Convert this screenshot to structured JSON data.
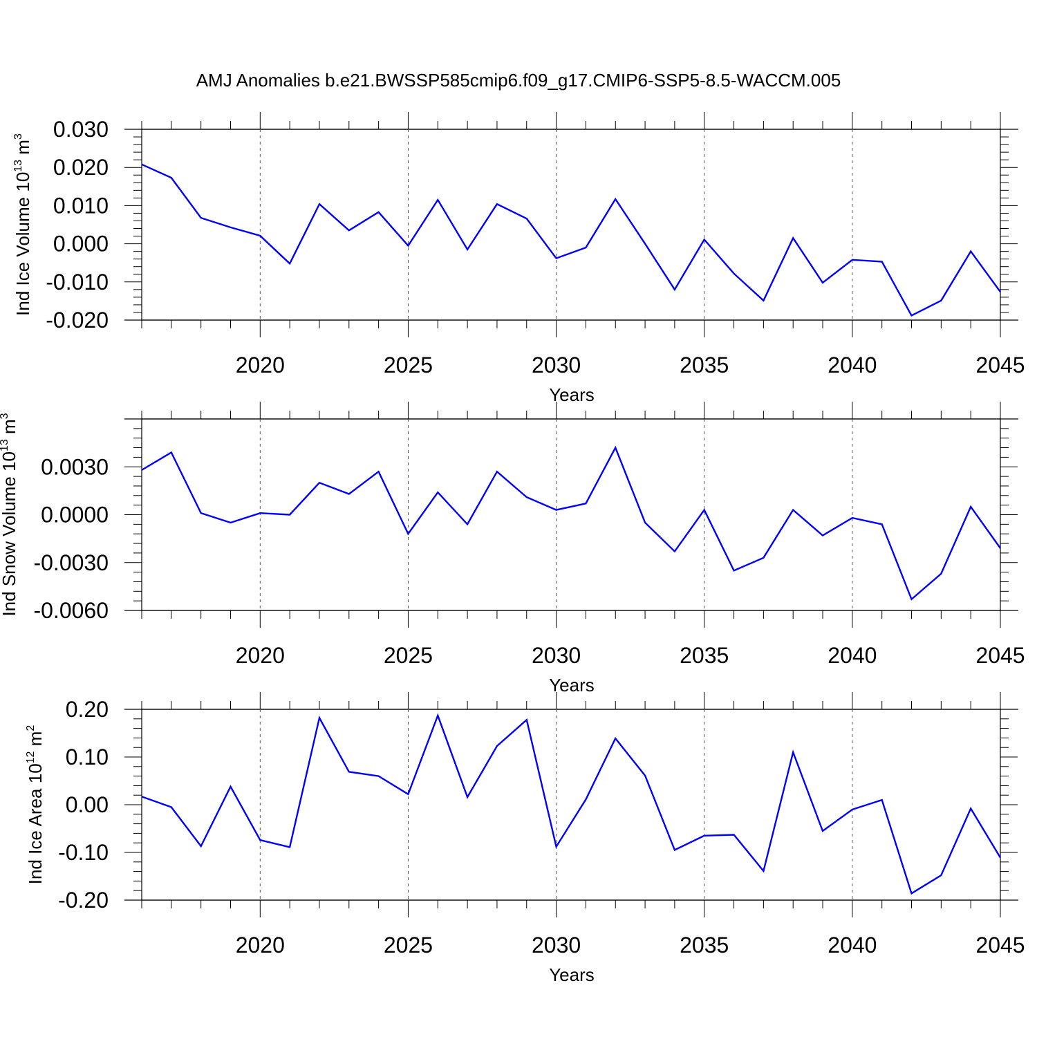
{
  "title": "AMJ Anomalies b.e21.BWSSP585cmip6.f09_g17.CMIP6-SSP5-8.5-WACCM.005",
  "colors": {
    "series": "#0000ff",
    "axis": "#000000",
    "grid": "#555555"
  },
  "chart_data": [
    {
      "type": "line",
      "ylabel": {
        "base": "Ind Ice Volume 10",
        "exp": "13",
        "unit": " m",
        "unit_exp": "3"
      },
      "xlabel": "Years",
      "xlim": [
        2016,
        2045
      ],
      "ylim": [
        -0.02,
        0.03
      ],
      "yticks": [
        "0.030",
        "0.020",
        "0.010",
        "0.000",
        "-0.010",
        "-0.020"
      ],
      "ytick_values": [
        0.03,
        0.02,
        0.01,
        0.0,
        -0.01,
        -0.02
      ],
      "xticks": [
        "2020",
        "2025",
        "2030",
        "2035",
        "2040",
        "2045"
      ],
      "xtick_values": [
        2020,
        2025,
        2030,
        2035,
        2040,
        2045
      ],
      "grid": "vertical dashed at major x ticks",
      "series": [
        {
          "x": [
            2016,
            2017,
            2018,
            2019,
            2020,
            2021,
            2022,
            2023,
            2024,
            2025,
            2026,
            2027,
            2028,
            2029,
            2030,
            2031,
            2032,
            2033,
            2034,
            2035,
            2036,
            2037,
            2038,
            2039,
            2040,
            2041,
            2042,
            2043,
            2044,
            2045
          ],
          "values": [
            0.0208,
            0.0173,
            0.0068,
            0.0043,
            0.0021,
            -0.0052,
            0.0104,
            0.0035,
            0.0083,
            -0.0005,
            0.0115,
            -0.0015,
            0.0104,
            0.0066,
            -0.0038,
            -0.001,
            0.0117,
            0.0,
            -0.012,
            0.0011,
            -0.0078,
            -0.0149,
            0.0015,
            -0.0102,
            -0.0042,
            -0.0047,
            -0.0188,
            -0.0149,
            -0.002,
            -0.0126
          ]
        }
      ]
    },
    {
      "type": "line",
      "ylabel": {
        "base": "Ind Snow Volume 10",
        "exp": "13",
        "unit": " m",
        "unit_exp": "3"
      },
      "xlabel": "Years",
      "xlim": [
        2016,
        2045
      ],
      "ylim": [
        -0.006,
        0.006
      ],
      "yticks": [
        "0.0030",
        "0.0000",
        "-0.0030",
        "-0.0060"
      ],
      "ytick_values": [
        0.003,
        0.0,
        -0.003,
        -0.006
      ],
      "xticks": [
        "2020",
        "2025",
        "2030",
        "2035",
        "2040",
        "2045"
      ],
      "xtick_values": [
        2020,
        2025,
        2030,
        2035,
        2040,
        2045
      ],
      "grid": "vertical dashed at major x ticks",
      "series": [
        {
          "x": [
            2016,
            2017,
            2018,
            2019,
            2020,
            2021,
            2022,
            2023,
            2024,
            2025,
            2026,
            2027,
            2028,
            2029,
            2030,
            2031,
            2032,
            2033,
            2034,
            2035,
            2036,
            2037,
            2038,
            2039,
            2040,
            2041,
            2042,
            2043,
            2044,
            2045
          ],
          "values": [
            0.0028,
            0.0039,
            0.0001,
            -0.0005,
            0.0001,
            0.0,
            0.002,
            0.0013,
            0.0027,
            -0.0012,
            0.0014,
            -0.0006,
            0.0027,
            0.0011,
            0.0003,
            0.0007,
            0.0042,
            -0.0005,
            -0.0023,
            0.0003,
            -0.0035,
            -0.0027,
            0.0003,
            -0.0013,
            -0.0002,
            -0.0006,
            -0.0053,
            -0.0037,
            0.0005,
            -0.0021
          ]
        }
      ]
    },
    {
      "type": "line",
      "ylabel": {
        "base": "Ind Ice Area 10",
        "exp": "12",
        "unit": " m",
        "unit_exp": "2"
      },
      "xlabel": "Years",
      "xlim": [
        2016,
        2045
      ],
      "ylim": [
        -0.2,
        0.2
      ],
      "yticks": [
        "0.20",
        "0.10",
        "0.00",
        "-0.10",
        "-0.20"
      ],
      "ytick_values": [
        0.2,
        0.1,
        0.0,
        -0.1,
        -0.2
      ],
      "xticks": [
        "2020",
        "2025",
        "2030",
        "2035",
        "2040",
        "2045"
      ],
      "xtick_values": [
        2020,
        2025,
        2030,
        2035,
        2040,
        2045
      ],
      "grid": "vertical dashed at major x ticks",
      "series": [
        {
          "x": [
            2016,
            2017,
            2018,
            2019,
            2020,
            2021,
            2022,
            2023,
            2024,
            2025,
            2026,
            2027,
            2028,
            2029,
            2030,
            2031,
            2032,
            2033,
            2034,
            2035,
            2036,
            2037,
            2038,
            2039,
            2040,
            2041,
            2042,
            2043,
            2044,
            2045
          ],
          "values": [
            0.017,
            -0.005,
            -0.087,
            0.038,
            -0.074,
            -0.089,
            0.182,
            0.069,
            0.06,
            0.022,
            0.187,
            0.016,
            0.123,
            0.178,
            -0.088,
            0.011,
            0.139,
            0.061,
            -0.095,
            -0.065,
            -0.063,
            -0.139,
            0.11,
            -0.055,
            -0.01,
            0.01,
            -0.186,
            -0.148,
            -0.008,
            -0.111
          ]
        }
      ]
    }
  ]
}
